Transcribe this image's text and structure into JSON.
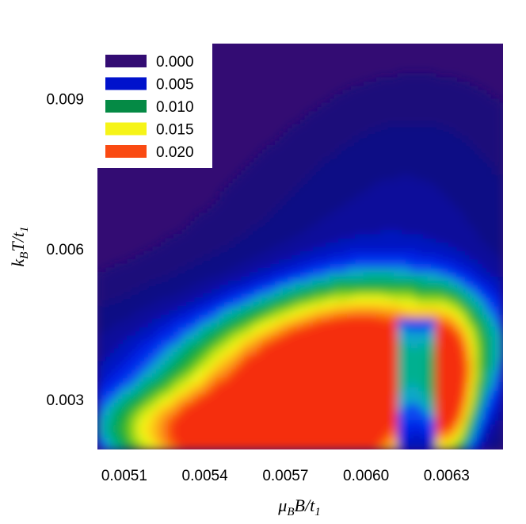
{
  "chart_data": {
    "type": "heatmap",
    "subtype": "filled-contour",
    "title": "",
    "xlabel": {
      "main": "μ",
      "parts": [
        [
          "μ",
          "B"
        ],
        [
          "B/t",
          ""
        ],
        [
          "",
          "1"
        ]
      ]
    },
    "ylabel": {
      "main": "k",
      "parts": [
        [
          "k",
          "B"
        ],
        [
          "T/t",
          "1"
        ]
      ]
    },
    "xlim": [
      0.005,
      0.00651
    ],
    "ylim": [
      0.002,
      0.0101
    ],
    "xticks": [
      0.0051,
      0.0054,
      0.0057,
      0.006,
      0.0063
    ],
    "xtick_labels": [
      "0.0051",
      "0.0054",
      "0.0057",
      "0.0060",
      "0.0063"
    ],
    "yticks": [
      0.003,
      0.006,
      0.009
    ],
    "ytick_labels": [
      "0.003",
      "0.006",
      "0.009"
    ],
    "legend": {
      "placement": "top-left",
      "entries": [
        {
          "label": "0.000",
          "color": "#330c73"
        },
        {
          "label": "0.005",
          "color": "#0012cc"
        },
        {
          "label": "0.010",
          "color": "#058a45"
        },
        {
          "label": "0.015",
          "color": "#f6f418"
        },
        {
          "label": "0.020",
          "color": "#fa4a12"
        }
      ]
    },
    "levels": [
      {
        "value": 0.0,
        "color": "#330c73"
      },
      {
        "value": 0.001,
        "color": "#1a0e7a"
      },
      {
        "value": 0.002,
        "color": "#0c0d85"
      },
      {
        "value": 0.003,
        "color": "#0a119a"
      },
      {
        "value": 0.004,
        "color": "#0016c0"
      },
      {
        "value": 0.005,
        "color": "#0020e6"
      },
      {
        "value": 0.006,
        "color": "#0a48f0"
      },
      {
        "value": 0.007,
        "color": "#07a8c8"
      },
      {
        "value": 0.008,
        "color": "#03b090"
      },
      {
        "value": 0.009,
        "color": "#05a655"
      },
      {
        "value": 0.01,
        "color": "#0ba93a"
      },
      {
        "value": 0.011,
        "color": "#4dc21a"
      },
      {
        "value": 0.012,
        "color": "#9ad81a"
      },
      {
        "value": 0.013,
        "color": "#d3ea18"
      },
      {
        "value": 0.014,
        "color": "#f4f71a"
      },
      {
        "value": 0.015,
        "color": "#fbe016"
      },
      {
        "value": 0.016,
        "color": "#fcc012"
      },
      {
        "value": 0.017,
        "color": "#fda515"
      },
      {
        "value": 0.018,
        "color": "#fc8a12"
      },
      {
        "value": 0.019,
        "color": "#fb6a10"
      },
      {
        "value": 0.02,
        "color": "#fa4a12"
      },
      {
        "value": 0.021,
        "color": "#f52d0c"
      }
    ],
    "grid": false
  }
}
